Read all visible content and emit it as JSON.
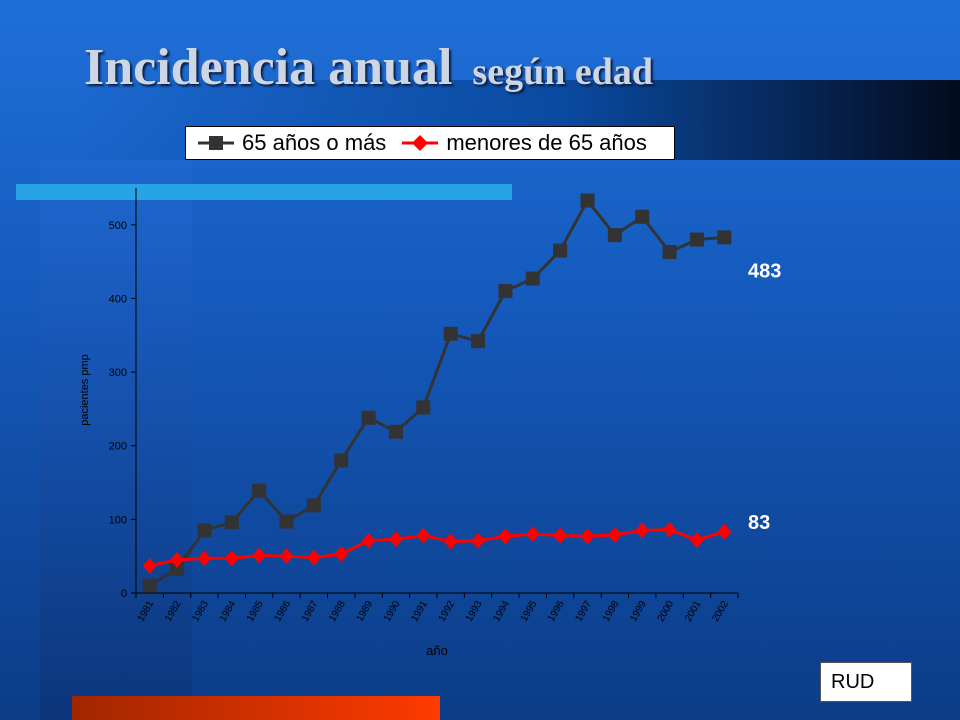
{
  "slide": {
    "title_main": "Incidencia anual",
    "title_sub": "según edad",
    "footer_box": "RUD"
  },
  "colors": {
    "series_65_plus": "#333333",
    "series_under_65": "#ff0000"
  },
  "chart_data": {
    "type": "line",
    "title": "Incidencia anual según edad",
    "xlabel": "año",
    "ylabel": "pacientes pmp",
    "ylim": [
      0,
      550
    ],
    "yticks": [
      0,
      100,
      200,
      300,
      400,
      500
    ],
    "categories": [
      "1981",
      "1982",
      "1983",
      "1984",
      "1985",
      "1986",
      "1987",
      "1988",
      "1989",
      "1990",
      "1991",
      "1992",
      "1993",
      "1994",
      "1995",
      "1996",
      "1997",
      "1998",
      "1999",
      "2000",
      "2001",
      "2002"
    ],
    "legend_position": "top",
    "grid": false,
    "series": [
      {
        "name": "65 años o más",
        "marker": "square",
        "values": [
          10,
          33,
          85,
          96,
          139,
          97,
          119,
          180,
          238,
          219,
          252,
          352,
          342,
          410,
          427,
          465,
          533,
          486,
          511,
          463,
          480,
          483
        ],
        "end_label": "483"
      },
      {
        "name": "menores de 65 años",
        "marker": "diamond",
        "values": [
          37,
          45,
          47,
          47,
          51,
          50,
          48,
          53,
          71,
          73,
          78,
          70,
          71,
          77,
          80,
          78,
          77,
          79,
          85,
          86,
          72,
          83
        ],
        "end_label": "83"
      }
    ]
  }
}
